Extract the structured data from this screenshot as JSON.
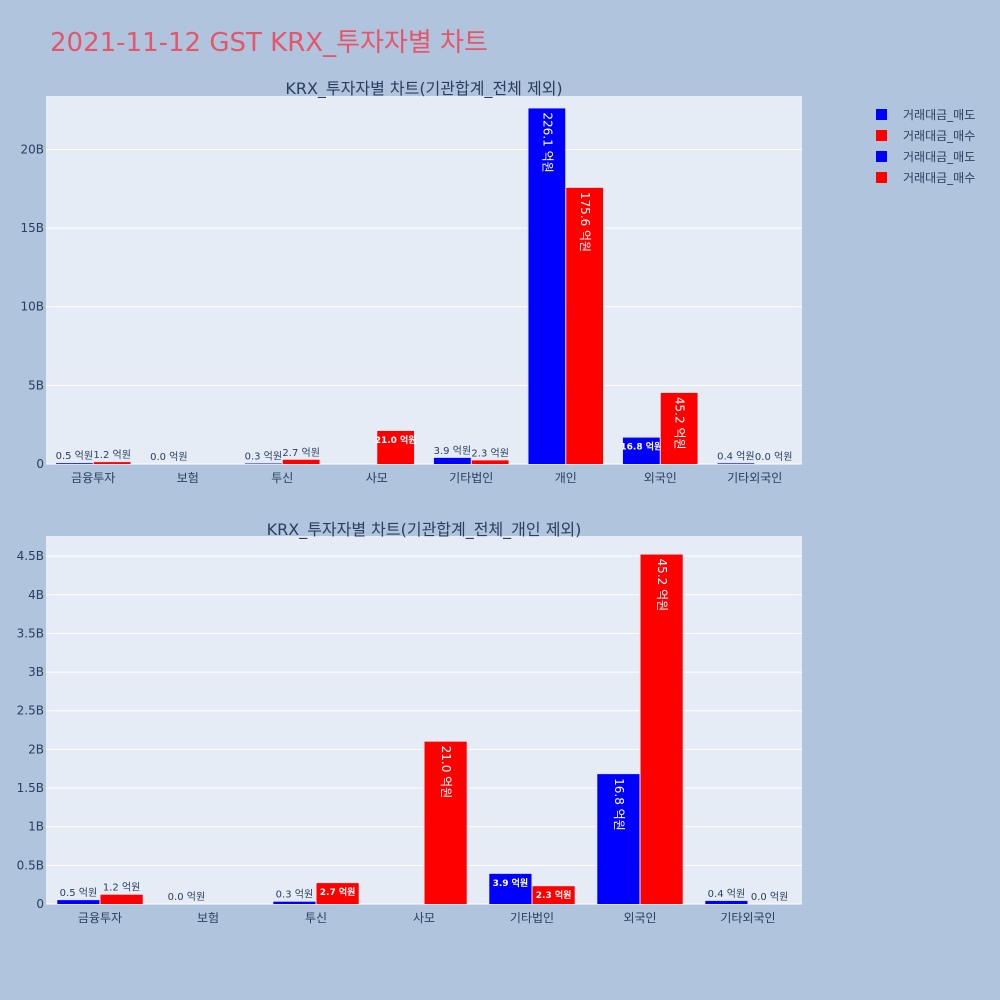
{
  "title": "2021-11-12 GST KRX_투자자별 차트",
  "legend": [
    {
      "label": "거래대금_매도",
      "color": "#0000ff"
    },
    {
      "label": "거래대금_매수",
      "color": "#ff0000"
    },
    {
      "label": "거래대금_매도",
      "color": "#0000ff"
    },
    {
      "label": "거래대금_매수",
      "color": "#ff0000"
    }
  ],
  "colors": {
    "sell": "#0000ff",
    "buy": "#ff0000",
    "plot_bg": "#e5ecf6",
    "paper_bg": "#b0c4de",
    "title": "#e5566a"
  },
  "chart_data": [
    {
      "type": "bar",
      "title": "KRX_투자자별 차트(기관합계_전체 제외)",
      "categories": [
        "금융투자",
        "보험",
        "투신",
        "사모",
        "기타법인",
        "개인",
        "외국인",
        "기타외국인"
      ],
      "y_tick_labels": [
        "0",
        "5B",
        "10B",
        "15B",
        "20B"
      ],
      "ylim": [
        0,
        23.4
      ],
      "y_unit": "B",
      "grid": true,
      "legend_position": "top-right",
      "series": [
        {
          "name": "거래대금_매도",
          "values": [
            0.05,
            0.0,
            0.03,
            0.0,
            0.39,
            22.61,
            1.68,
            0.04
          ],
          "labels": [
            "0.5 억원",
            "0.0 억원",
            "0.3 억원",
            "",
            "3.9 억원",
            "226.1 억원",
            "16.8 억원",
            "0.4 억원"
          ]
        },
        {
          "name": "거래대금_매수",
          "values": [
            0.12,
            0.0,
            0.27,
            2.1,
            0.23,
            17.56,
            4.52,
            0.0
          ],
          "labels": [
            "1.2 억원",
            "",
            "2.7 억원",
            "21.0 억원",
            "2.3 억원",
            "175.6 억원",
            "45.2 억원",
            "0.0 억원"
          ]
        }
      ]
    },
    {
      "type": "bar",
      "title": "KRX_투자자별 차트(기관합계_전체_개인 제외)",
      "categories": [
        "금융투자",
        "보험",
        "투신",
        "사모",
        "기타법인",
        "외국인",
        "기타외국인"
      ],
      "y_tick_labels": [
        "0",
        "0.5B",
        "1B",
        "1.5B",
        "2B",
        "2.5B",
        "3B",
        "3.5B",
        "4B",
        "4.5B"
      ],
      "ylim": [
        0,
        4.76
      ],
      "y_unit": "B",
      "grid": true,
      "series": [
        {
          "name": "거래대금_매도",
          "values": [
            0.05,
            0.0,
            0.03,
            0.0,
            0.39,
            1.68,
            0.04
          ],
          "labels": [
            "0.5 억원",
            "0.0 억원",
            "0.3 억원",
            "",
            "3.9 억원",
            "16.8 억원",
            "0.4 억원"
          ]
        },
        {
          "name": "거래대금_매수",
          "values": [
            0.12,
            0.0,
            0.27,
            2.1,
            0.23,
            4.52,
            0.0
          ],
          "labels": [
            "1.2 억원",
            "",
            "2.7 억원",
            "21.0 억원",
            "2.3 억원",
            "45.2 억원",
            "0.0 억원"
          ]
        }
      ]
    }
  ]
}
